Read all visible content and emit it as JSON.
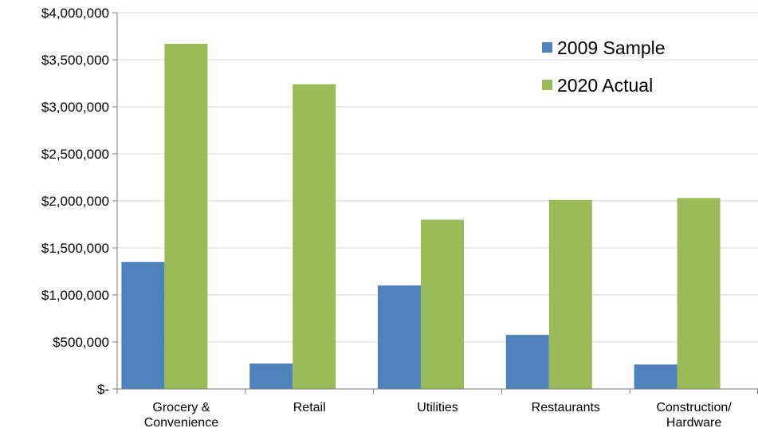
{
  "chart_data": {
    "type": "bar",
    "title": "",
    "xlabel": "",
    "ylabel": "",
    "categories": [
      [
        "Grocery &",
        "Convenience"
      ],
      [
        "Retail"
      ],
      [
        "Utilities"
      ],
      [
        "Restaurants"
      ],
      [
        "Construction/",
        "Hardware"
      ]
    ],
    "series": [
      {
        "name": "2009 Sample",
        "color": "#4f81bd",
        "values": [
          1350000,
          270000,
          1100000,
          575000,
          260000
        ]
      },
      {
        "name": "2020 Actual",
        "color": "#9bbb59",
        "values": [
          3670000,
          3240000,
          1800000,
          2010000,
          2030000
        ]
      }
    ],
    "ylim": [
      0,
      4000000
    ],
    "y_tick_labels": [
      "$-",
      "$500,000",
      "$1,000,000",
      "$1,500,000",
      "$2,000,000",
      "$2,500,000",
      "$3,000,000",
      "$3,500,000",
      "$4,000,000"
    ],
    "grid": true,
    "legend_position": "top-right"
  }
}
